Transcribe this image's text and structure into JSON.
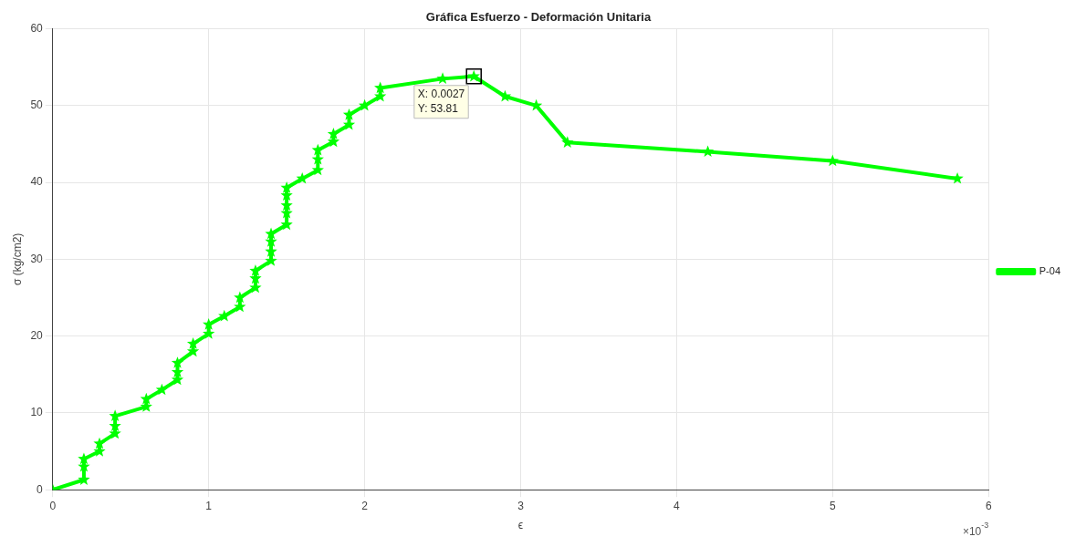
{
  "chart_data": {
    "type": "line",
    "title": "Gráfica Esfuerzo - Deformación Unitaria",
    "xlabel": "ϵ",
    "ylabel": "σ (kg/cm2)",
    "x": [
      0,
      0.2,
      0.2,
      0.2,
      0.3,
      0.3,
      0.4,
      0.4,
      0.4,
      0.6,
      0.6,
      0.7,
      0.8,
      0.8,
      0.8,
      0.9,
      0.9,
      1.0,
      1.0,
      1.1,
      1.2,
      1.2,
      1.3,
      1.3,
      1.3,
      1.4,
      1.4,
      1.4,
      1.4,
      1.5,
      1.5,
      1.5,
      1.5,
      1.5,
      1.6,
      1.7,
      1.7,
      1.7,
      1.8,
      1.8,
      1.9,
      1.9,
      2.0,
      2.1,
      2.1,
      2.5,
      2.7,
      2.9,
      3.1,
      3.3,
      4.2,
      5.0,
      5.8
    ],
    "series": [
      {
        "name": "P-04",
        "color": "#00ff00",
        "values": [
          0,
          1.3,
          3,
          4,
          5,
          6,
          7.3,
          8.3,
          9.6,
          10.8,
          11.8,
          13,
          14.3,
          15.3,
          16.5,
          18,
          19,
          20.3,
          21.5,
          22.6,
          23.8,
          25,
          26.3,
          27.5,
          28.5,
          29.8,
          31,
          32.3,
          33.3,
          34.5,
          36,
          37,
          38.3,
          39.3,
          40.5,
          41.6,
          43,
          44.2,
          45.3,
          46.3,
          47.5,
          48.8,
          50,
          51.2,
          52.3,
          53.5,
          53.81,
          51.2,
          50,
          45.2,
          44,
          42.8,
          40.5
        ]
      }
    ],
    "xlim": [
      0,
      6
    ],
    "xticks": [
      0,
      1,
      2,
      3,
      4,
      5,
      6
    ],
    "ylim": [
      0,
      60
    ],
    "yticks": [
      0,
      10,
      20,
      30,
      40,
      50,
      60
    ],
    "annotations": [
      {
        "text": "X: 0.0027\nY: 53.81",
        "x": 2.7,
        "y": 53.81
      },
      "×10$^{-3}$"
    ],
    "grid": true,
    "legend": "right",
    "marker": "star",
    "line_style": "solid"
  }
}
